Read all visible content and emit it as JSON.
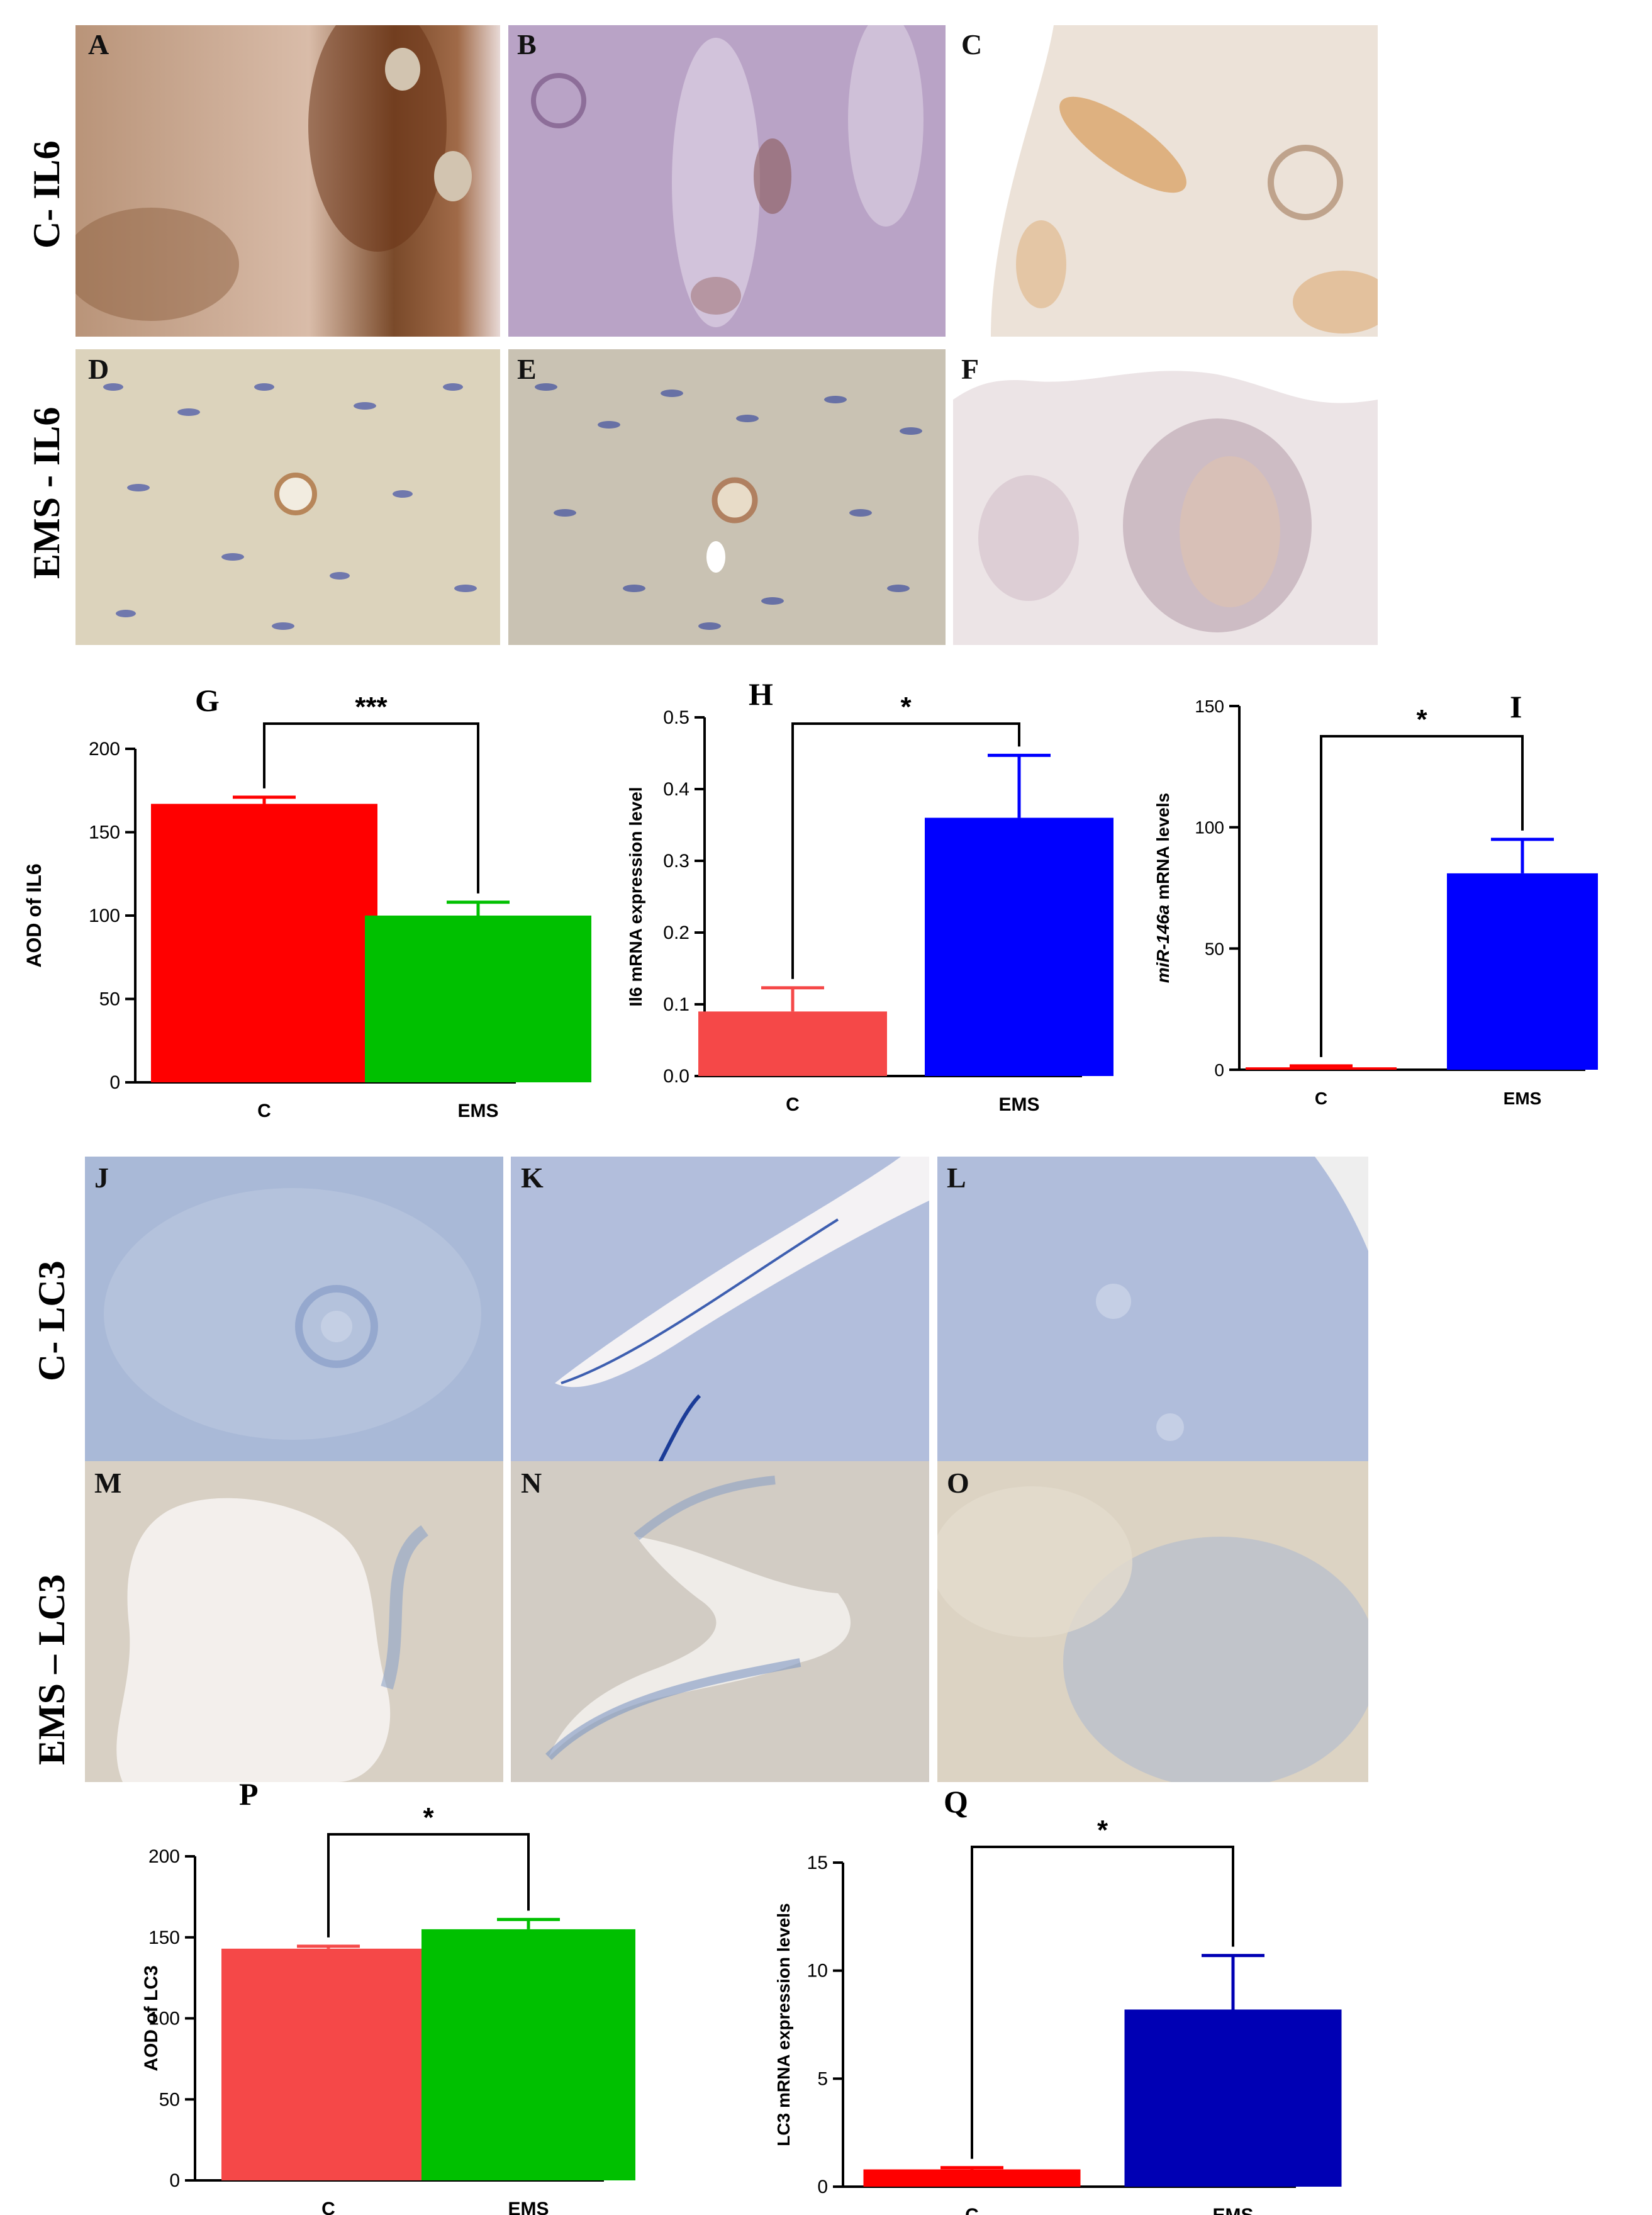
{
  "row_labels": {
    "c_il6": "C- IL6",
    "ems_il6": "EMS - IL6",
    "c_lc3": "C- LC3",
    "ems_lc3": "EMS – LC3"
  },
  "micrographs": [
    {
      "letter": "A",
      "stain": "brown-strong"
    },
    {
      "letter": "B",
      "stain": "violet"
    },
    {
      "letter": "C",
      "stain": "pale-tan"
    },
    {
      "letter": "D",
      "stain": "cream-blue"
    },
    {
      "letter": "E",
      "stain": "cream-blue-dense"
    },
    {
      "letter": "F",
      "stain": "light-mixed"
    },
    {
      "letter": "J",
      "stain": "blue"
    },
    {
      "letter": "K",
      "stain": "blue-lumen"
    },
    {
      "letter": "L",
      "stain": "blue-uniform"
    },
    {
      "letter": "M",
      "stain": "tan-lumen"
    },
    {
      "letter": "N",
      "stain": "tan-blue"
    },
    {
      "letter": "O",
      "stain": "tan-blue-dense"
    }
  ],
  "colors": {
    "red": "#ff0000",
    "green": "#00c000",
    "light_red": "#f54848",
    "blue": "#0000ff",
    "dark_blue": "#0000b4",
    "axis": "#000000"
  },
  "chart_data": [
    {
      "id": "G",
      "letter": "G",
      "type": "bar",
      "categories": [
        "C",
        "EMS"
      ],
      "values": [
        167,
        100
      ],
      "errors": [
        4,
        8
      ],
      "colors": [
        "#ff0000",
        "#00c000"
      ],
      "ylabel": "AOD of IL6",
      "ylim": [
        0,
        200
      ],
      "yticks": [
        "0",
        "50",
        "100",
        "150",
        "200"
      ],
      "significance": "***"
    },
    {
      "id": "H",
      "letter": "H",
      "type": "bar",
      "categories": [
        "C",
        "EMS"
      ],
      "values": [
        0.09,
        0.36
      ],
      "errors": [
        0.033,
        0.087
      ],
      "colors": [
        "#f54848",
        "#0000ff"
      ],
      "ylabel": "Il6 mRNA expression level",
      "ylim": [
        0,
        0.5
      ],
      "yticks": [
        "0.0",
        "0.1",
        "0.2",
        "0.3",
        "0.4",
        "0.5"
      ],
      "significance": "*"
    },
    {
      "id": "I",
      "letter": "I",
      "type": "bar",
      "categories": [
        "C",
        "EMS"
      ],
      "values": [
        1,
        81
      ],
      "errors": [
        0.6,
        14
      ],
      "colors": [
        "#ff0000",
        "#0000ff"
      ],
      "ylabel_italic": "miR-146a",
      "ylabel_rest": " mRNA  levels",
      "ylim": [
        0,
        150
      ],
      "yticks": [
        "0",
        "50",
        "100",
        "150"
      ],
      "significance": "*"
    },
    {
      "id": "P",
      "letter": "P",
      "type": "bar",
      "categories": [
        "C",
        "EMS"
      ],
      "values": [
        143,
        155
      ],
      "errors": [
        1.5,
        6
      ],
      "colors": [
        "#f54848",
        "#00c000"
      ],
      "ylabel": "AOD of LC3",
      "ylim": [
        0,
        200
      ],
      "yticks": [
        "0",
        "50",
        "100",
        "150",
        "200"
      ],
      "significance": "*"
    },
    {
      "id": "Q",
      "letter": "Q",
      "type": "bar",
      "categories": [
        "C",
        "EMS"
      ],
      "values": [
        0.8,
        8.2
      ],
      "errors": [
        0.08,
        2.5
      ],
      "colors": [
        "#ff0000",
        "#0000b4"
      ],
      "ylabel": "LC3 mRNA expression levels",
      "ylim": [
        0,
        15
      ],
      "yticks": [
        "0",
        "5",
        "10",
        "15"
      ],
      "significance": "*"
    }
  ]
}
